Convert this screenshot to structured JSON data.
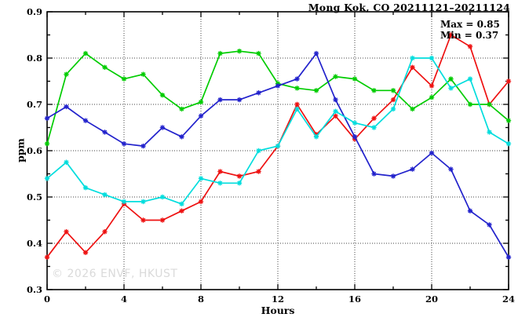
{
  "title": "Mong Kok, CO 20211121–20211124",
  "annotation": {
    "max_label": "Max = 0.85",
    "min_label": "Min = 0.37"
  },
  "watermark": "© 2026 ENVF, HKUST",
  "colors": {
    "red": "#ee1111",
    "green": "#00cc00",
    "blue": "#2222cc",
    "cyan": "#00dddd",
    "grid": "#444444",
    "axis": "#000000",
    "watermark_gray": "#dadada"
  },
  "chart_data": {
    "type": "line",
    "title": "Mong Kok, CO 20211121–20211124",
    "xlabel": "Hours",
    "ylabel": "ppm",
    "xlim": [
      0,
      24
    ],
    "ylim": [
      0.3,
      0.9
    ],
    "grid": true,
    "grid_style": "dotted",
    "legend_position": "none",
    "marker": "asterisk",
    "x_major_ticks": [
      0,
      4,
      8,
      12,
      16,
      20,
      24
    ],
    "x_minor_step": 2,
    "x_grid_at": [
      4,
      8,
      12,
      16,
      20
    ],
    "y_major_ticks": [
      0.3,
      0.4,
      0.5,
      0.6,
      0.7,
      0.8,
      0.9
    ],
    "y_minor_step": 0.05,
    "y_grid_at": [
      0.4,
      0.5,
      0.6,
      0.7,
      0.8
    ],
    "max": 0.85,
    "min": 0.37,
    "x": [
      0,
      1,
      2,
      3,
      4,
      5,
      6,
      7,
      8,
      9,
      10,
      11,
      12,
      13,
      14,
      15,
      16,
      17,
      18,
      19,
      20,
      21,
      22,
      23,
      24
    ],
    "series": [
      {
        "name": "red",
        "color": "#ee1111",
        "values": [
          0.37,
          0.425,
          0.38,
          0.425,
          0.485,
          0.45,
          0.45,
          0.47,
          0.49,
          0.555,
          0.545,
          0.555,
          0.61,
          0.7,
          0.635,
          0.675,
          0.625,
          0.67,
          0.71,
          0.78,
          0.74,
          0.85,
          0.825,
          0.7,
          0.75
        ]
      },
      {
        "name": "green",
        "color": "#00cc00",
        "values": [
          0.615,
          0.765,
          0.81,
          0.78,
          0.755,
          0.765,
          0.72,
          0.69,
          0.705,
          0.81,
          0.815,
          0.81,
          0.745,
          0.735,
          0.73,
          0.76,
          0.755,
          0.73,
          0.73,
          0.69,
          0.715,
          0.755,
          0.7,
          0.7,
          0.665
        ]
      },
      {
        "name": "blue",
        "color": "#2222cc",
        "values": [
          0.67,
          0.695,
          0.665,
          0.64,
          0.615,
          0.61,
          0.65,
          0.63,
          0.675,
          0.71,
          0.71,
          0.725,
          0.74,
          0.755,
          0.81,
          0.71,
          0.63,
          0.55,
          0.545,
          0.56,
          0.595,
          0.56,
          0.47,
          0.44,
          0.37
        ]
      },
      {
        "name": "cyan",
        "color": "#00dddd",
        "values": [
          0.54,
          0.575,
          0.52,
          0.505,
          0.49,
          0.49,
          0.5,
          0.485,
          0.54,
          0.53,
          0.53,
          0.6,
          0.61,
          0.69,
          0.63,
          0.685,
          0.66,
          0.65,
          0.69,
          0.8,
          0.8,
          0.735,
          0.755,
          0.64,
          0.615
        ]
      }
    ]
  }
}
